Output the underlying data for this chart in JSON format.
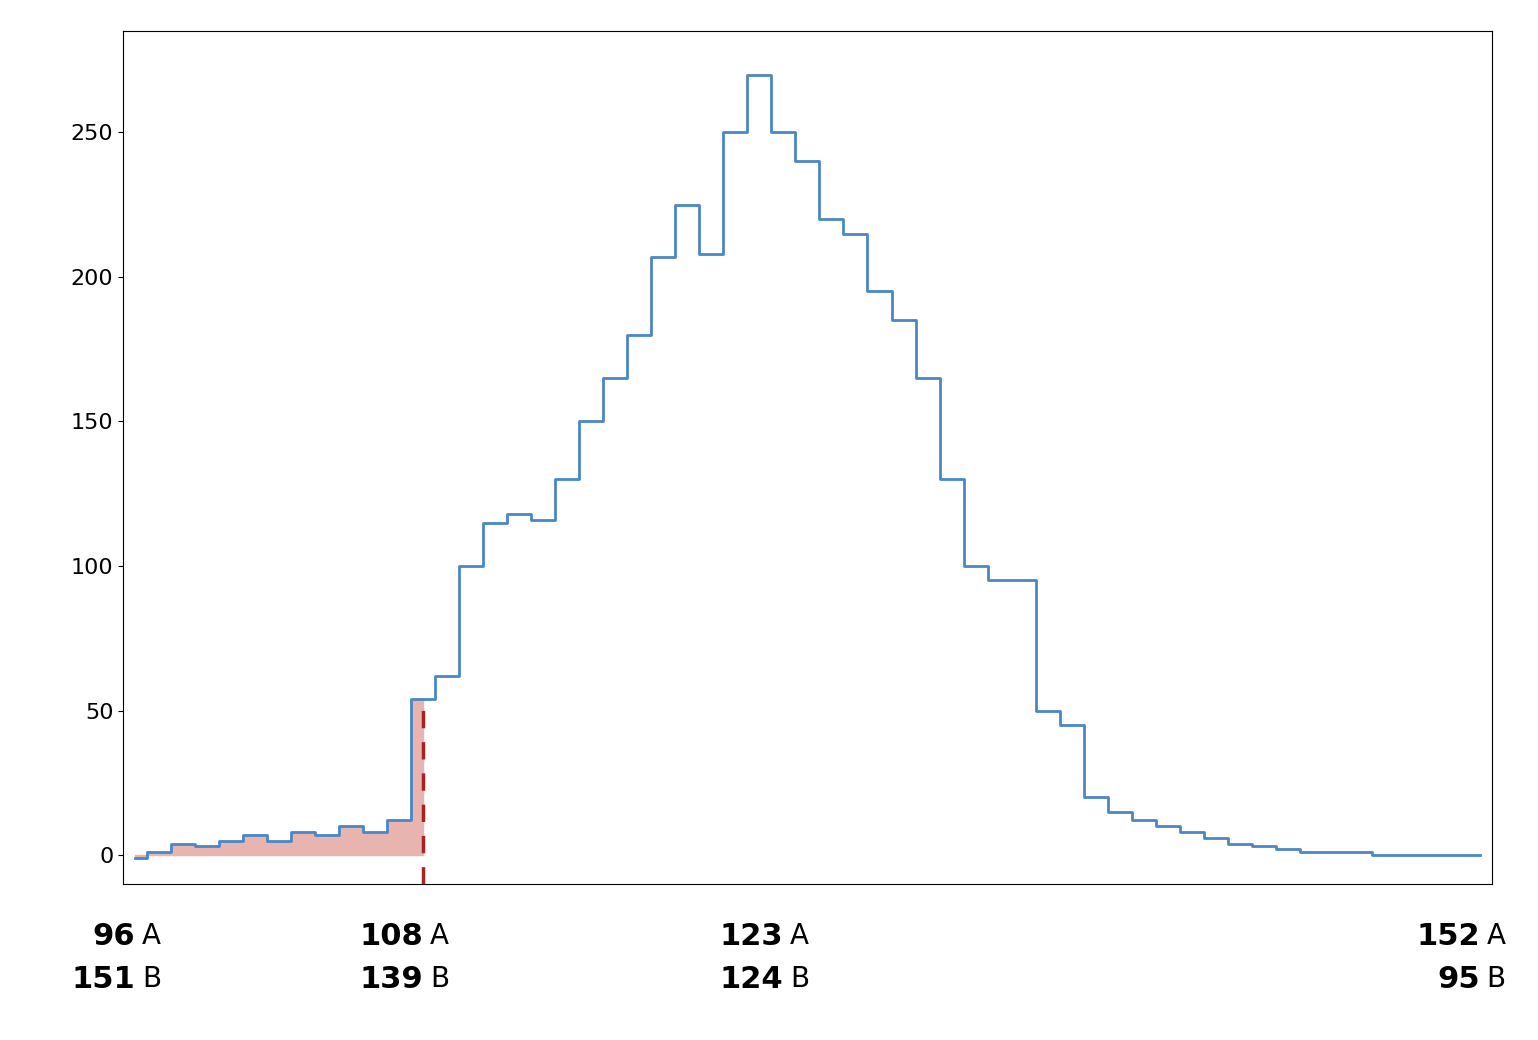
{
  "x_min": 96,
  "x_max": 152,
  "y_min": -10,
  "y_max": 285,
  "threshold_x": 108,
  "line_color": "#4a86c8",
  "fill_color": "#e8b4b0",
  "dashed_line_color": "#aa2222",
  "background_color": "#ffffff",
  "tick_labels_A": [
    96,
    108,
    123,
    152
  ],
  "tick_labels_B": [
    151,
    139,
    124,
    95
  ],
  "yticks": [
    0,
    50,
    100,
    150,
    200,
    250
  ],
  "annotation_fontsize": 20,
  "bold_num_fontsize": 22,
  "x_data": [
    96,
    97,
    98,
    99,
    100,
    101,
    102,
    103,
    104,
    105,
    106,
    107,
    108,
    109,
    110,
    111,
    112,
    113,
    114,
    115,
    116,
    117,
    118,
    119,
    120,
    121,
    122,
    123,
    124,
    125,
    126,
    127,
    128,
    129,
    130,
    131,
    132,
    133,
    134,
    135,
    136,
    137,
    138,
    139,
    140,
    141,
    142,
    143,
    144,
    145,
    146,
    147,
    148,
    149,
    150,
    151,
    152
  ],
  "y_data": [
    -1,
    1,
    4,
    3,
    5,
    7,
    5,
    8,
    7,
    10,
    8,
    12,
    54,
    62,
    100,
    115,
    118,
    116,
    130,
    150,
    165,
    180,
    207,
    225,
    208,
    250,
    270,
    250,
    240,
    220,
    215,
    195,
    185,
    165,
    130,
    100,
    95,
    95,
    50,
    45,
    20,
    15,
    12,
    10,
    8,
    6,
    4,
    3,
    2,
    1,
    1,
    1,
    0,
    0,
    0,
    0,
    0
  ]
}
